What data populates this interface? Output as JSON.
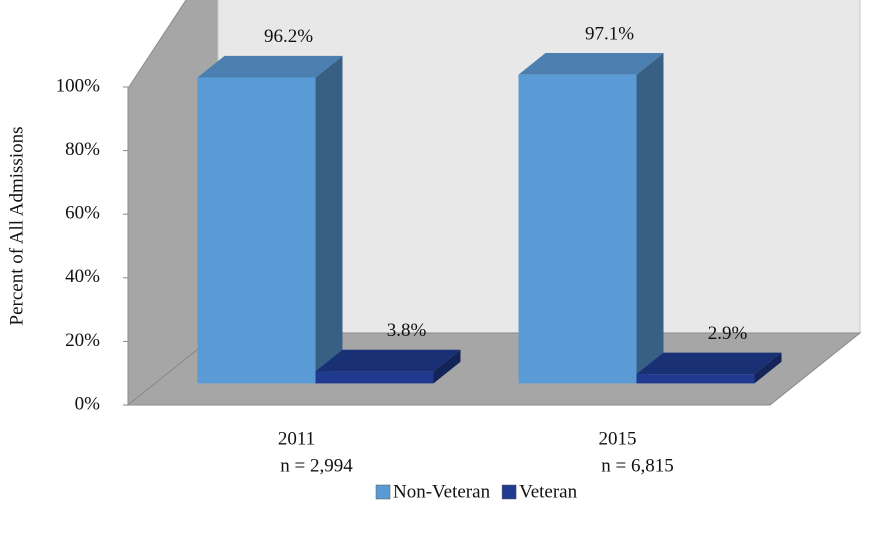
{
  "chart_data": {
    "type": "bar3d",
    "y_axis_label": "Percent of All Admissions",
    "categories": [
      "2011",
      "2015"
    ],
    "category_notes": [
      "n = 2,994",
      "n = 6,815"
    ],
    "series": [
      {
        "name": "Non-Veteran",
        "color": "#5b9bd5",
        "values": [
          96.2,
          97.1
        ],
        "value_labels": [
          "96.2%",
          "97.1%"
        ]
      },
      {
        "name": "Veteran",
        "color": "#203a8f",
        "values": [
          3.8,
          2.9
        ],
        "value_labels": [
          "3.8%",
          "2.9%"
        ]
      }
    ],
    "ylim": [
      0,
      120
    ],
    "yticks": [
      {
        "value": 0,
        "label": "0%"
      },
      {
        "value": 20,
        "label": "20%"
      },
      {
        "value": 40,
        "label": "40%"
      },
      {
        "value": 60,
        "label": "60%"
      },
      {
        "value": 80,
        "label": "80%"
      },
      {
        "value": 100,
        "label": "100%"
      }
    ],
    "legend": "bottom"
  }
}
